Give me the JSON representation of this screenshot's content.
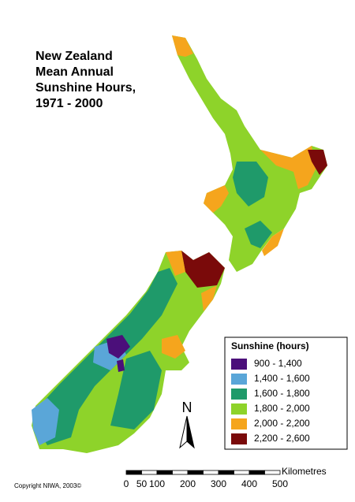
{
  "title": [
    "New Zealand",
    "Mean Annual",
    "Sunshine Hours,",
    "1971 - 2000"
  ],
  "legend": {
    "title": "Sunshine (hours)",
    "items": [
      {
        "label": "900 - 1,400",
        "color": "#4b0f7a"
      },
      {
        "label": "1,400 - 1,600",
        "color": "#5aa6d8"
      },
      {
        "label": "1,600 - 1,800",
        "color": "#1f9a6a"
      },
      {
        "label": "1,800 - 2,000",
        "color": "#8ed32a"
      },
      {
        "label": "2,000 - 2,200",
        "color": "#f5a51d"
      },
      {
        "label": "2,200 - 2,600",
        "color": "#7a0a0a"
      }
    ]
  },
  "north_arrow": "N",
  "scale_bar": {
    "labels": [
      "0",
      "50",
      "100",
      "200",
      "300",
      "400",
      "500"
    ],
    "unit": "Kilometres"
  },
  "copyright": "Copyright NIWA, 2003©"
}
